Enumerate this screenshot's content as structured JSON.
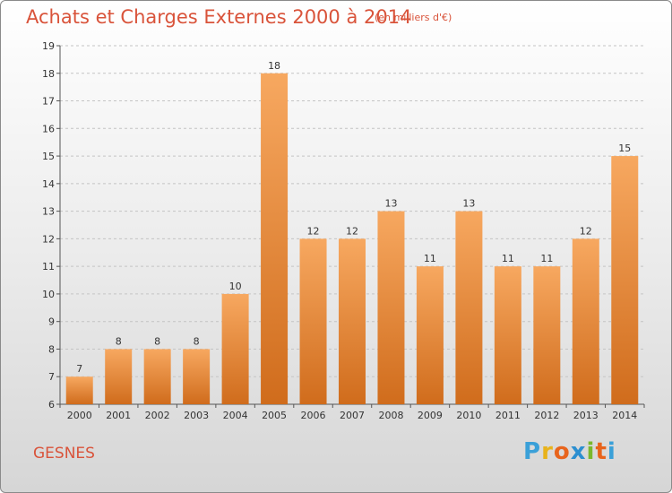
{
  "header": {
    "title": "Achats et Charges Externes 2000 à 2014",
    "subtitle": "(en milliers d'€)"
  },
  "footer": {
    "commune": "GESNES",
    "brand_letters": [
      "P",
      "r",
      "o",
      "x",
      "i",
      "t",
      "i"
    ]
  },
  "colors": {
    "title": "#d9533a",
    "bar_light": "#f7a860",
    "bar_dark": "#d06c1c",
    "grid": "#c4c4c4",
    "brand": [
      "#3aa0d8",
      "#e8b31c",
      "#e8641c",
      "#2c8fd0",
      "#7ab82c",
      "#e8641c",
      "#3aa0d8"
    ]
  },
  "chart_data": {
    "type": "bar",
    "categories": [
      "2000",
      "2001",
      "2002",
      "2003",
      "2004",
      "2005",
      "2006",
      "2007",
      "2008",
      "2009",
      "2010",
      "2011",
      "2012",
      "2013",
      "2014"
    ],
    "values": [
      7,
      8,
      8,
      8,
      10,
      18,
      12,
      12,
      13,
      11,
      13,
      11,
      11,
      12,
      15
    ],
    "title": "Achats et Charges Externes 2000 à 2014",
    "subtitle": "(en milliers d'€)",
    "ylim": [
      6,
      19
    ],
    "yticks": [
      6,
      7,
      8,
      9,
      10,
      11,
      12,
      13,
      14,
      15,
      16,
      17,
      18,
      19
    ],
    "grid": true
  }
}
